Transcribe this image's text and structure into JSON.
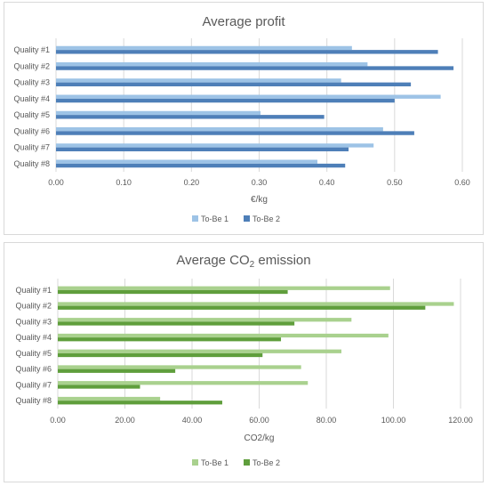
{
  "chart_data": [
    {
      "type": "bar",
      "orientation": "horizontal",
      "title": "Average profit",
      "xlabel": "€/kg",
      "ylabel": "",
      "categories": [
        "Quality #1",
        "Quality #2",
        "Quality #3",
        "Quality #4",
        "Quality #5",
        "Quality #6",
        "Quality #7",
        "Quality #8"
      ],
      "series": [
        {
          "name": "To-Be 1",
          "color": "#9dc3e6",
          "values": [
            0.437,
            0.46,
            0.421,
            0.568,
            0.302,
            0.483,
            0.469,
            0.386
          ]
        },
        {
          "name": "To-Be 2",
          "color": "#4e7fb8",
          "values": [
            0.564,
            0.587,
            0.524,
            0.5,
            0.396,
            0.529,
            0.432,
            0.427
          ]
        }
      ],
      "xlim": [
        0,
        0.6
      ],
      "xticks": [
        "0.00",
        "0.10",
        "0.20",
        "0.30",
        "0.40",
        "0.50",
        "0.60"
      ],
      "grid": true,
      "legend_position": "bottom"
    },
    {
      "type": "bar",
      "orientation": "horizontal",
      "title": "Average CO",
      "title_subscript": "2",
      "title_suffix": " emission",
      "xlabel": "CO2/kg",
      "ylabel": "",
      "categories": [
        "Quality #1",
        "Quality #2",
        "Quality #3",
        "Quality #4",
        "Quality #5",
        "Quality #6",
        "Quality #7",
        "Quality #8"
      ],
      "series": [
        {
          "name": "To-Be 1",
          "color": "#a9d18e",
          "values": [
            99,
            118,
            87.5,
            98.5,
            84.5,
            72.5,
            74.5,
            30.5
          ]
        },
        {
          "name": "To-Be 2",
          "color": "#5f9e3c",
          "values": [
            68.5,
            109.5,
            70.5,
            66.5,
            61,
            35,
            24.5,
            49
          ]
        }
      ],
      "xlim": [
        0,
        120
      ],
      "xticks": [
        "0.00",
        "20.00",
        "40.00",
        "60.00",
        "80.00",
        "100.00",
        "120.00"
      ],
      "grid": true,
      "legend_position": "bottom"
    }
  ]
}
